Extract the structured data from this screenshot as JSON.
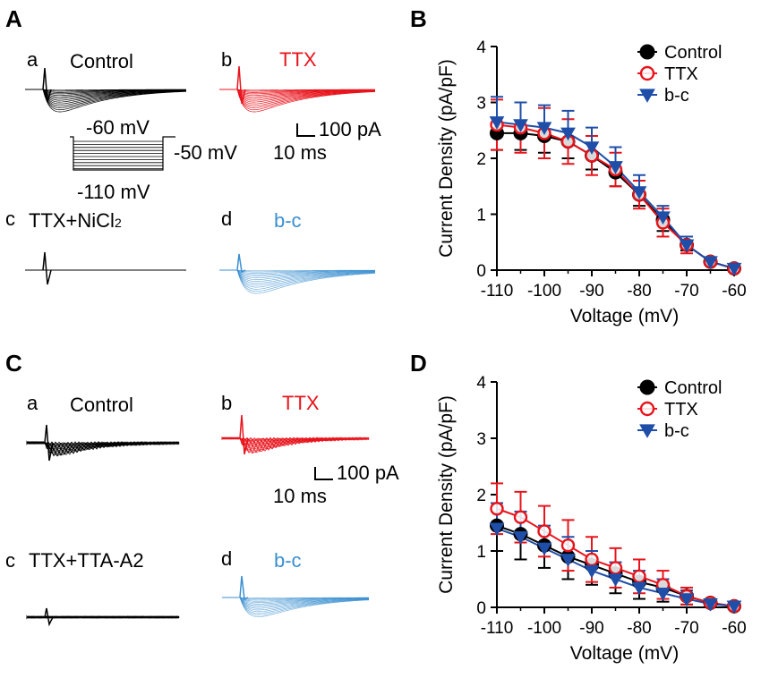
{
  "panels": {
    "A": {
      "label": "A",
      "traces": [
        {
          "letter": "a",
          "name": "Control",
          "color": "#000000"
        },
        {
          "letter": "b",
          "name": "TTX",
          "color": "#e8141c"
        },
        {
          "letter": "c",
          "name": "TTX+NiCl",
          "name_sub": "2",
          "color": "#000000"
        },
        {
          "letter": "d",
          "name": "b-c",
          "color": "#3a8fd0"
        }
      ],
      "protocol": {
        "hold": "-60 mV",
        "step_low": "-110 mV",
        "step_high": "-50 mV"
      },
      "scale": {
        "current": "100 pA",
        "time": "10 ms"
      }
    },
    "C": {
      "label": "C",
      "traces": [
        {
          "letter": "a",
          "name": "Control",
          "color": "#000000"
        },
        {
          "letter": "b",
          "name": "TTX",
          "color": "#e8141c"
        },
        {
          "letter": "c",
          "name": "TTX+TTA-A2",
          "color": "#000000"
        },
        {
          "letter": "d",
          "name": "b-c",
          "color": "#3a8fd0"
        }
      ],
      "scale": {
        "current": "100 pA",
        "time": "10 ms"
      }
    }
  },
  "chart_data": [
    {
      "panel": "B",
      "type": "line",
      "xlabel": "Voltage (mV)",
      "ylabel": "Current Density (pA/pF)",
      "xlim": [
        -110,
        -60
      ],
      "ylim": [
        0,
        4
      ],
      "xticks": [
        -110,
        -100,
        -90,
        -80,
        -70,
        -60
      ],
      "yticks": [
        0,
        1,
        2,
        3,
        4
      ],
      "legend_position": "top-right",
      "x": [
        -110,
        -105,
        -100,
        -95,
        -90,
        -85,
        -80,
        -75,
        -70,
        -65,
        -60
      ],
      "series": [
        {
          "name": "Control",
          "marker": "filled-circle",
          "color": "#000000",
          "values": [
            2.45,
            2.45,
            2.4,
            2.3,
            2.05,
            1.75,
            1.35,
            0.9,
            0.45,
            0.15,
            0.03
          ],
          "err": [
            0.3,
            0.3,
            0.3,
            0.3,
            0.25,
            0.25,
            0.2,
            0.2,
            0.1,
            0.05,
            0.03
          ]
        },
        {
          "name": "TTX",
          "marker": "open-circle",
          "color": "#e8141c",
          "values": [
            2.6,
            2.55,
            2.45,
            2.3,
            2.05,
            1.8,
            1.35,
            0.85,
            0.45,
            0.15,
            0.03
          ],
          "err": [
            0.45,
            0.45,
            0.45,
            0.4,
            0.35,
            0.3,
            0.25,
            0.25,
            0.15,
            0.05,
            0.03
          ]
        },
        {
          "name": "b-c",
          "marker": "filled-triangle-down",
          "color": "#1f4ea8",
          "values": [
            2.65,
            2.6,
            2.55,
            2.45,
            2.2,
            1.85,
            1.4,
            0.95,
            0.45,
            0.15,
            0.03
          ],
          "err": [
            0.45,
            0.4,
            0.4,
            0.4,
            0.35,
            0.35,
            0.3,
            0.2,
            0.15,
            0.05,
            0.03
          ]
        }
      ]
    },
    {
      "panel": "D",
      "type": "line",
      "xlabel": "Voltage (mV)",
      "ylabel": "Current Density (pA/pF)",
      "xlim": [
        -110,
        -60
      ],
      "ylim": [
        0,
        4
      ],
      "xticks": [
        -110,
        -100,
        -90,
        -80,
        -70,
        -60
      ],
      "yticks": [
        0,
        1,
        2,
        3,
        4
      ],
      "legend_position": "top-right",
      "x": [
        -110,
        -105,
        -100,
        -95,
        -90,
        -85,
        -80,
        -75,
        -70,
        -65,
        -60
      ],
      "series": [
        {
          "name": "Control",
          "marker": "filled-circle",
          "color": "#000000",
          "values": [
            1.45,
            1.3,
            1.1,
            0.9,
            0.75,
            0.6,
            0.45,
            0.35,
            0.2,
            0.08,
            0.02
          ],
          "err": [
            0.45,
            0.45,
            0.4,
            0.4,
            0.35,
            0.35,
            0.3,
            0.25,
            0.15,
            0.05,
            0.02
          ]
        },
        {
          "name": "TTX",
          "marker": "open-circle",
          "color": "#e8141c",
          "values": [
            1.75,
            1.6,
            1.35,
            1.1,
            0.85,
            0.7,
            0.55,
            0.4,
            0.2,
            0.08,
            0.02
          ],
          "err": [
            0.45,
            0.45,
            0.45,
            0.45,
            0.4,
            0.35,
            0.3,
            0.25,
            0.15,
            0.05,
            0.02
          ]
        },
        {
          "name": "b-c",
          "marker": "filled-triangle-down",
          "color": "#1f4ea8",
          "values": [
            1.4,
            1.25,
            1.05,
            0.85,
            0.65,
            0.5,
            0.35,
            0.25,
            0.15,
            0.06,
            0.02
          ],
          "err": [
            0.45,
            0.45,
            0.4,
            0.4,
            0.35,
            0.3,
            0.3,
            0.25,
            0.15,
            0.05,
            0.02
          ]
        }
      ]
    }
  ]
}
